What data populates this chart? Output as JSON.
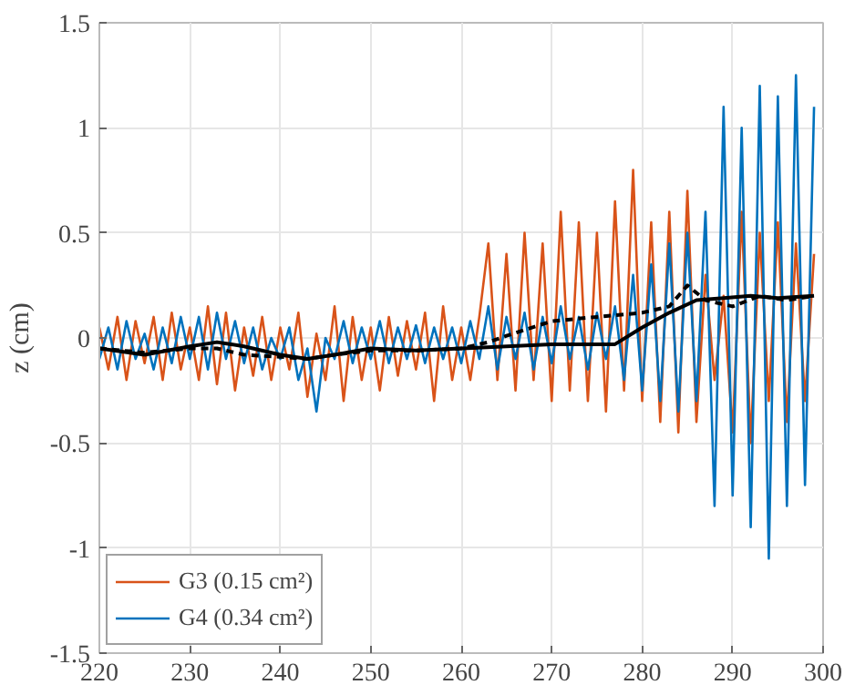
{
  "chart_data": {
    "type": "line",
    "ylabel": "z (cm)",
    "xlim": [
      220,
      300
    ],
    "xticks": [
      220,
      230,
      240,
      250,
      260,
      270,
      280,
      290,
      300
    ],
    "ylim": [
      -1.5,
      1.5
    ],
    "yticks": [
      -1.5,
      -1,
      -0.5,
      0,
      0.5,
      1,
      1.5
    ],
    "grid": true,
    "legend": "bottom left",
    "marker": "none",
    "line_style": "solid",
    "x": [
      220,
      221,
      222,
      223,
      224,
      225,
      226,
      227,
      228,
      229,
      230,
      231,
      232,
      233,
      234,
      235,
      236,
      237,
      238,
      239,
      240,
      241,
      242,
      243,
      244,
      245,
      246,
      247,
      248,
      249,
      250,
      251,
      252,
      253,
      254,
      255,
      256,
      257,
      258,
      259,
      260,
      261,
      262,
      263,
      264,
      265,
      266,
      267,
      268,
      269,
      270,
      271,
      272,
      273,
      274,
      275,
      276,
      277,
      278,
      279,
      280,
      281,
      282,
      283,
      284,
      285,
      286,
      287,
      288,
      289,
      290,
      291,
      292,
      293,
      294,
      295,
      296,
      297,
      298,
      299
    ],
    "series": [
      {
        "name": "G3 (0.15 cm²)",
        "color": "#d95319",
        "values": [
          0.05,
          -0.15,
          0.1,
          -0.2,
          0.08,
          -0.12,
          0.1,
          -0.2,
          0.12,
          -0.15,
          0.05,
          -0.2,
          0.15,
          -0.22,
          0.12,
          -0.25,
          0.05,
          -0.18,
          0.1,
          -0.2,
          0.05,
          -0.15,
          0.12,
          -0.28,
          0.02,
          -0.2,
          0.15,
          -0.3,
          0.1,
          -0.2,
          0.05,
          -0.25,
          0.1,
          -0.18,
          0.08,
          -0.15,
          0.12,
          -0.3,
          0.15,
          -0.2,
          0.05,
          -0.2,
          0.1,
          0.45,
          -0.2,
          0.4,
          -0.25,
          0.5,
          -0.2,
          0.45,
          -0.3,
          0.6,
          -0.25,
          0.55,
          -0.3,
          0.5,
          -0.35,
          0.65,
          -0.25,
          0.8,
          -0.3,
          0.55,
          -0.4,
          0.6,
          -0.45,
          0.7,
          -0.4,
          0.3,
          -0.2,
          0.2,
          -0.45,
          0.6,
          -0.5,
          0.5,
          -0.3,
          0.55,
          -0.4,
          0.45,
          -0.3,
          0.4
        ]
      },
      {
        "name": "G4 (0.34 cm²)",
        "color": "#0072bd",
        "values": [
          -0.1,
          0.05,
          -0.15,
          0.08,
          -0.1,
          0.02,
          -0.15,
          0.05,
          -0.12,
          0.1,
          -0.1,
          0.1,
          -0.15,
          0.12,
          -0.1,
          0.08,
          -0.12,
          0.05,
          -0.15,
          0.0,
          -0.1,
          0.05,
          -0.2,
          -0.05,
          -0.35,
          0.0,
          -0.1,
          0.08,
          -0.12,
          0.05,
          -0.1,
          0.08,
          -0.12,
          0.05,
          -0.1,
          0.06,
          -0.12,
          0.05,
          -0.1,
          0.05,
          -0.12,
          0.08,
          -0.1,
          0.15,
          -0.15,
          0.1,
          -0.1,
          0.12,
          -0.15,
          0.1,
          -0.12,
          0.15,
          -0.1,
          0.1,
          -0.15,
          0.12,
          -0.1,
          0.15,
          -0.2,
          0.3,
          -0.25,
          0.35,
          -0.3,
          0.45,
          -0.35,
          0.5,
          -0.3,
          0.6,
          -0.8,
          1.1,
          -0.75,
          1.0,
          -0.9,
          1.2,
          -1.05,
          1.15,
          -0.8,
          1.25,
          -0.7,
          1.1
        ]
      },
      {
        "color": "#000000",
        "x": [
          220,
          225,
          230,
          233,
          236,
          240,
          243,
          246,
          250,
          255,
          260,
          265,
          270,
          275,
          277,
          280,
          283,
          286,
          289,
          292,
          295,
          299
        ],
        "values": [
          -0.05,
          -0.08,
          -0.04,
          -0.02,
          -0.04,
          -0.08,
          -0.1,
          -0.08,
          -0.05,
          -0.06,
          -0.05,
          -0.04,
          -0.03,
          -0.03,
          -0.03,
          0.05,
          0.12,
          0.18,
          0.19,
          0.2,
          0.19,
          0.2
        ]
      },
      {
        "color": "#000000",
        "line_style": "dashed",
        "x": [
          220,
          225,
          230,
          233,
          236,
          240,
          243,
          246,
          250,
          255,
          260,
          263,
          265,
          270,
          275,
          280,
          283,
          285,
          287,
          290,
          293,
          296,
          299
        ],
        "values": [
          -0.05,
          -0.07,
          -0.05,
          -0.05,
          -0.08,
          -0.09,
          -0.1,
          -0.08,
          -0.06,
          -0.06,
          -0.05,
          -0.02,
          0.01,
          0.08,
          0.1,
          0.12,
          0.15,
          0.25,
          0.18,
          0.15,
          0.2,
          0.18,
          0.2
        ]
      }
    ]
  }
}
